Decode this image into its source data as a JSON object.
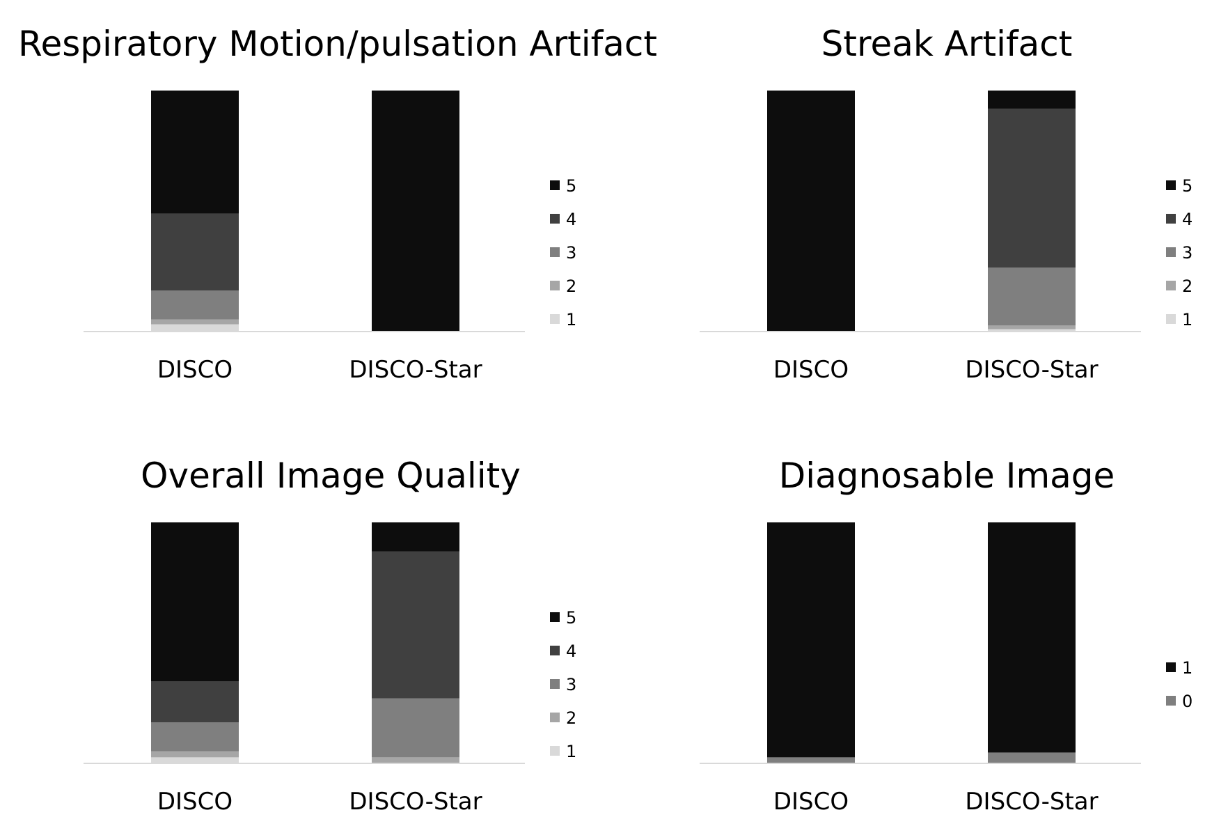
{
  "colors": {
    "1": "#d9d9d9",
    "2": "#a6a6a6",
    "3": "#7f7f7f",
    "4": "#404040",
    "5": "#0d0d0d",
    "axis": "#d9d9d9",
    "text": "#000000"
  },
  "chart_data": [
    {
      "type": "bar",
      "stacked": "percent",
      "title": "Respiratory Motion/pulsation Artifact",
      "categories": [
        "DISCO",
        "DISCO-Star"
      ],
      "series": [
        {
          "name": "1",
          "values": [
            3,
            0
          ]
        },
        {
          "name": "2",
          "values": [
            2,
            0
          ]
        },
        {
          "name": "3",
          "values": [
            12,
            0
          ]
        },
        {
          "name": "4",
          "values": [
            32,
            0
          ]
        },
        {
          "name": "5",
          "values": [
            51,
            100
          ]
        }
      ],
      "legend": "right",
      "ylim": [
        0,
        100
      ],
      "grid": false
    },
    {
      "type": "bar",
      "stacked": "percent",
      "title": "Streak Artifact",
      "categories": [
        "DISCO",
        "DISCO-Star"
      ],
      "series": [
        {
          "name": "1",
          "values": [
            0,
            1
          ]
        },
        {
          "name": "2",
          "values": [
            0,
            1.5
          ]
        },
        {
          "name": "3",
          "values": [
            0,
            24
          ]
        },
        {
          "name": "4",
          "values": [
            0,
            66
          ]
        },
        {
          "name": "5",
          "values": [
            100,
            7.5
          ]
        }
      ],
      "legend": "right",
      "ylim": [
        0,
        100
      ],
      "grid": false
    },
    {
      "type": "bar",
      "stacked": "percent",
      "title": "Overall Image Quality",
      "categories": [
        "DISCO",
        "DISCO-Star"
      ],
      "series": [
        {
          "name": "1",
          "values": [
            2.5,
            0
          ]
        },
        {
          "name": "2",
          "values": [
            2.5,
            2.5
          ]
        },
        {
          "name": "3",
          "values": [
            12,
            24.5
          ]
        },
        {
          "name": "4",
          "values": [
            17,
            61
          ]
        },
        {
          "name": "5",
          "values": [
            66,
            12
          ]
        }
      ],
      "legend": "right",
      "ylim": [
        0,
        100
      ],
      "grid": false
    },
    {
      "type": "bar",
      "stacked": "percent",
      "title": "Diagnosable Image",
      "categories": [
        "DISCO",
        "DISCO-Star"
      ],
      "series": [
        {
          "name": "0",
          "values": [
            2.5,
            4.5
          ],
          "color": "#7f7f7f"
        },
        {
          "name": "1",
          "values": [
            97.5,
            95.5
          ],
          "color": "#0d0d0d"
        }
      ],
      "legend": "right",
      "ylim": [
        0,
        100
      ],
      "grid": false
    }
  ]
}
